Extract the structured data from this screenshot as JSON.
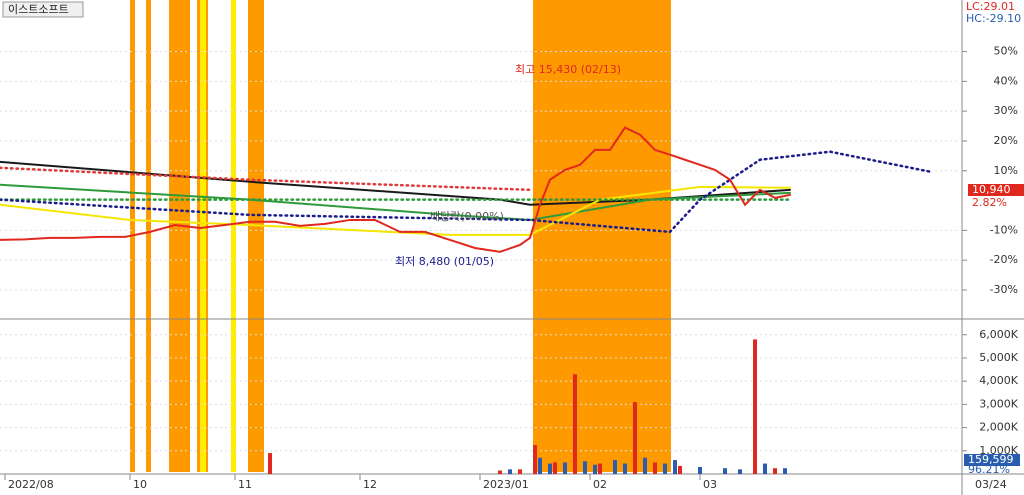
{
  "chart_data": [
    {
      "type": "line",
      "title": "이스트소프트",
      "annotations": [
        "최고 15,430 (02/13)",
        "최저 8,480 (01/05)",
        "배당락(0.00%)",
        "LC:29.01",
        "HC:-29.10",
        "10,940",
        "2.82%"
      ],
      "xlim": [
        0,
        192
      ],
      "ylim": [
        -39.4,
        67.3
      ],
      "xticks": [
        {
          "value": 1,
          "label": "2022/08"
        },
        {
          "value": 26,
          "label": "10"
        },
        {
          "value": 47,
          "label": "11"
        },
        {
          "value": 72,
          "label": "12"
        },
        {
          "value": 96,
          "label": "2023/01"
        },
        {
          "value": 118,
          "label": "02"
        },
        {
          "value": 140,
          "label": "03"
        }
      ],
      "yticks": [
        {
          "value": 50,
          "label": "50%"
        },
        {
          "value": 40,
          "label": "40%"
        },
        {
          "value": 30,
          "label": "30%"
        },
        {
          "value": 20,
          "label": "20%"
        },
        {
          "value": 10,
          "label": "10%"
        },
        {
          "value": -10,
          "label": "-10%"
        },
        {
          "value": -20,
          "label": "-20%"
        },
        {
          "value": -30,
          "label": "-30%"
        }
      ],
      "grid": true,
      "series": [
        {
          "color": "#1a1a1a",
          "dash": false,
          "x": [
            0,
            50,
            100,
            106,
            130,
            158
          ],
          "values": [
            13,
            6.3,
            0.3,
            -1.4,
            0.3,
            3.6
          ]
        },
        {
          "color": "#2e9a3c",
          "dash": false,
          "x": [
            0,
            50,
            90,
            106,
            130,
            158
          ],
          "values": [
            5.3,
            0.3,
            -4.8,
            -6.5,
            0.3,
            2.6
          ]
        },
        {
          "color": "#f5e600",
          "dash": false,
          "x": [
            0,
            26,
            50,
            90,
            106,
            120,
            140,
            158
          ],
          "values": [
            -1.4,
            -6.5,
            -8.2,
            -11.5,
            -11.5,
            0.3,
            4.6,
            4.3
          ]
        },
        {
          "color": "#e03a3a",
          "dash": true,
          "x": [
            0,
            50,
            106
          ],
          "values": [
            11,
            7,
            3.6
          ]
        },
        {
          "color": "#2e9a3c",
          "dash": true,
          "x": [
            0,
            158
          ],
          "values": [
            0.3,
            0.3
          ]
        },
        {
          "color": "#1c1c8c",
          "dash": true,
          "x": [
            0,
            50,
            106,
            134,
            140,
            152,
            166,
            186
          ],
          "values": [
            0.3,
            -4.8,
            -6.5,
            -10.5,
            0.3,
            13.7,
            16.4,
            9.7
          ]
        },
        {
          "color": "#e0281e",
          "dash": false,
          "x": [
            0,
            5,
            10,
            15,
            20,
            25,
            30,
            35,
            40,
            45,
            50,
            55,
            60,
            65,
            70,
            75,
            80,
            85,
            90,
            95,
            100,
            104,
            106,
            108,
            110,
            113,
            116,
            119,
            122,
            125,
            128,
            131,
            134,
            137,
            140,
            143,
            146,
            149,
            152,
            155,
            158
          ],
          "values": [
            -13.2,
            -13,
            -12.5,
            -12.5,
            -12.2,
            -12.2,
            -10.5,
            -8.2,
            -9.2,
            -8.2,
            -7.1,
            -7.1,
            -8.5,
            -7.8,
            -6.5,
            -6.5,
            -10.5,
            -10.5,
            -13.2,
            -15.9,
            -17.2,
            -14.9,
            -12.5,
            -1.4,
            7,
            10.3,
            12,
            17,
            17,
            24.5,
            22.1,
            17,
            15.4,
            13.7,
            12,
            10.3,
            7,
            -1.4,
            3.6,
            0.9,
            1.9
          ]
        }
      ]
    },
    {
      "type": "bar",
      "annotations": [
        "159,599",
        "96.21%"
      ],
      "x_end_label": "03/24",
      "xlim": [
        0,
        192
      ],
      "ylim": [
        0,
        6550
      ],
      "yticks": [
        {
          "value": 1000,
          "label": "1,000K"
        },
        {
          "value": 2000,
          "label": "2,000K"
        },
        {
          "value": 3000,
          "label": "3,000K"
        },
        {
          "value": 4000,
          "label": "4,000K"
        },
        {
          "value": 5000,
          "label": "5,000K"
        },
        {
          "value": 6000,
          "label": "6,000K"
        }
      ],
      "grid": true,
      "series": [
        {
          "color": "#e0281e",
          "x": [
            54,
            100,
            104,
            107,
            111,
            115,
            120,
            127,
            131,
            136,
            151,
            155
          ],
          "values": [
            900,
            150,
            200,
            1250,
            500,
            4300,
            450,
            3100,
            500,
            350,
            5800,
            250
          ]
        },
        {
          "color": "#2a5db0",
          "x": [
            102,
            108,
            110,
            113,
            117,
            119,
            123,
            125,
            129,
            133,
            135,
            140,
            145,
            148,
            153,
            157
          ],
          "values": [
            200,
            700,
            450,
            500,
            550,
            400,
            600,
            450,
            700,
            450,
            600,
            300,
            250,
            200,
            450,
            250
          ]
        }
      ]
    }
  ]
}
